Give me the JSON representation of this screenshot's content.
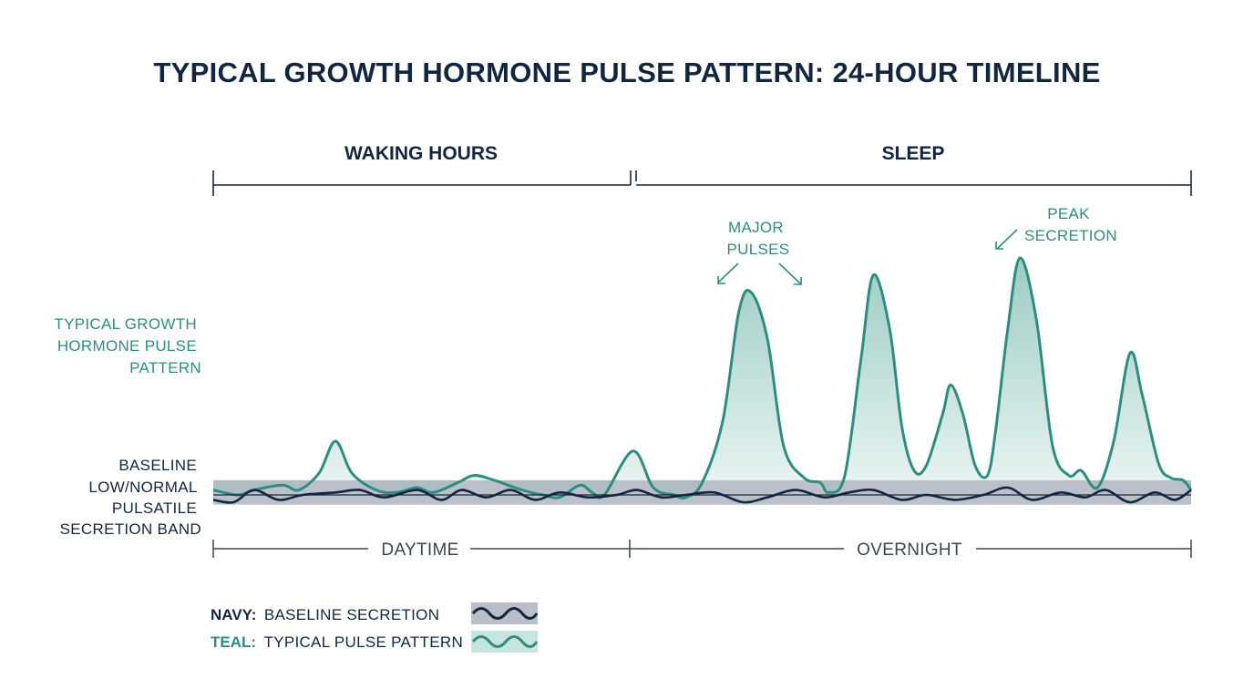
{
  "title": "TYPICAL GROWTH HORMONE PULSE PATTERN: 24-HOUR TIMELINE",
  "periods": [
    {
      "label": "WAKING HOURS"
    },
    {
      "label": "SLEEP"
    }
  ],
  "phases": [
    {
      "label": "DAYTIME"
    },
    {
      "label": "OVERNIGHT"
    }
  ],
  "side_labels": {
    "teal": [
      "TYPICAL GROWTH",
      "HORMONE PULSE",
      "PATTERN"
    ],
    "navy": [
      "BASELINE",
      "LOW/NORMAL",
      "PULSATILE",
      "SECRETION BAND"
    ]
  },
  "annotations": {
    "major_pulses": [
      "MAJOR",
      "PULSES"
    ],
    "peak_secretion": [
      "PEAK",
      "SECRETION"
    ]
  },
  "legend": [
    {
      "key": "NAVY:",
      "desc": "BASELINE SECRETION",
      "color": "#13263f",
      "band": "#a9aebb"
    },
    {
      "key": "TEAL:",
      "desc": "TYPICAL PULSE PATTERN",
      "color": "#2f8c7e",
      "band": "#c8e4de"
    }
  ],
  "colors": {
    "navy": "#13263f",
    "teal": "#2f8c7e",
    "teal_fill": "#5fae9f",
    "band": "#a9aebb"
  },
  "chart_data": {
    "type": "area",
    "title": "TYPICAL GROWTH HORMONE PULSE PATTERN: 24-HOUR TIMELINE",
    "xlabel": "",
    "ylabel": "",
    "x_range": [
      0,
      24
    ],
    "y_range": [
      0,
      100
    ],
    "grid": false,
    "legend_placement": "bottom-left",
    "period_split": 10.3,
    "baseline_band": [
      -4,
      6
    ],
    "series": [
      {
        "name": "TYPICAL PULSE PATTERN",
        "color": "#2f8c7e",
        "points": [
          [
            0,
            2
          ],
          [
            0.6,
            0
          ],
          [
            1.0,
            2
          ],
          [
            1.7,
            4
          ],
          [
            2.1,
            2
          ],
          [
            2.6,
            9
          ],
          [
            3.0,
            22
          ],
          [
            3.4,
            9
          ],
          [
            4.0,
            2
          ],
          [
            4.5,
            1
          ],
          [
            5.0,
            3
          ],
          [
            5.4,
            1
          ],
          [
            6.0,
            5
          ],
          [
            6.4,
            8
          ],
          [
            6.9,
            6
          ],
          [
            7.4,
            3
          ],
          [
            7.8,
            1
          ],
          [
            8.1,
            0
          ],
          [
            8.5,
            -1
          ],
          [
            9.0,
            4
          ],
          [
            9.3,
            1
          ],
          [
            9.6,
            0
          ],
          [
            10.3,
            18
          ],
          [
            10.8,
            3
          ],
          [
            11.3,
            0
          ],
          [
            11.6,
            -1
          ],
          [
            12.0,
            5
          ],
          [
            12.5,
            30
          ],
          [
            12.9,
            75
          ],
          [
            13.2,
            83
          ],
          [
            13.6,
            64
          ],
          [
            14.0,
            20
          ],
          [
            14.5,
            7
          ],
          [
            14.9,
            5
          ],
          [
            15.1,
            1
          ],
          [
            15.5,
            8
          ],
          [
            15.9,
            56
          ],
          [
            16.2,
            90
          ],
          [
            16.6,
            68
          ],
          [
            16.9,
            28
          ],
          [
            17.2,
            10
          ],
          [
            17.5,
            12
          ],
          [
            17.9,
            33
          ],
          [
            18.1,
            45
          ],
          [
            18.4,
            33
          ],
          [
            18.7,
            12
          ],
          [
            19.0,
            8
          ],
          [
            19.2,
            26
          ],
          [
            19.5,
            68
          ],
          [
            19.8,
            97
          ],
          [
            20.2,
            72
          ],
          [
            20.6,
            20
          ],
          [
            21.0,
            8
          ],
          [
            21.3,
            10
          ],
          [
            21.7,
            3
          ],
          [
            22.1,
            22
          ],
          [
            22.5,
            58
          ],
          [
            22.8,
            41
          ],
          [
            23.2,
            13
          ],
          [
            23.5,
            7
          ],
          [
            23.8,
            6
          ],
          [
            24,
            2
          ]
        ]
      },
      {
        "name": "BASELINE SECRETION",
        "color": "#13263f",
        "points": [
          [
            0,
            -2
          ],
          [
            0.5,
            -3
          ],
          [
            1.0,
            2
          ],
          [
            1.6,
            -2
          ],
          [
            2.2,
            0
          ],
          [
            3.0,
            1
          ],
          [
            3.6,
            2
          ],
          [
            4.2,
            -1
          ],
          [
            5.0,
            2
          ],
          [
            5.6,
            -2
          ],
          [
            6.1,
            2
          ],
          [
            6.7,
            -1
          ],
          [
            7.3,
            2
          ],
          [
            7.9,
            -2
          ],
          [
            8.5,
            1
          ],
          [
            9.2,
            -1
          ],
          [
            9.9,
            0
          ],
          [
            10.4,
            2
          ],
          [
            11.0,
            -1
          ],
          [
            11.6,
            0
          ],
          [
            12.3,
            1
          ],
          [
            13.0,
            -3
          ],
          [
            13.6,
            -1
          ],
          [
            14.3,
            2
          ],
          [
            15.0,
            -1
          ],
          [
            15.6,
            1
          ],
          [
            16.2,
            2
          ],
          [
            16.9,
            -2
          ],
          [
            17.5,
            0
          ],
          [
            18.2,
            -2
          ],
          [
            18.9,
            0
          ],
          [
            19.5,
            3
          ],
          [
            20.1,
            -2
          ],
          [
            20.8,
            1
          ],
          [
            21.4,
            -1
          ],
          [
            21.9,
            2
          ],
          [
            22.5,
            -3
          ],
          [
            23.1,
            1
          ],
          [
            23.6,
            -2
          ],
          [
            24,
            2
          ]
        ]
      }
    ]
  }
}
